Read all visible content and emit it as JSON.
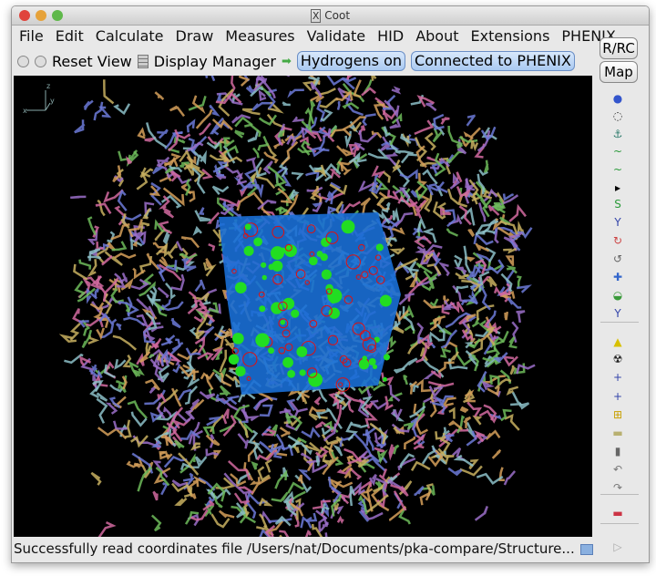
{
  "window": {
    "title": "Coot",
    "title_icon": "x11-icon"
  },
  "menu": [
    "File",
    "Edit",
    "Calculate",
    "Draw",
    "Measures",
    "Validate",
    "HID",
    "About",
    "Extensions",
    "PHENIX"
  ],
  "toolbar": {
    "reset_view": "Reset View",
    "display_manager": "Display Manager",
    "hydrogens": "Hydrogens on",
    "phenix": "Connected to PHENIX"
  },
  "side": {
    "rrc": "R/RC",
    "map": "Map",
    "icons": [
      "rotate-translate-icon",
      "rotate-zone-icon",
      "torsion-icon",
      "refine-zone-icon",
      "regularize-zone-icon",
      "expand-arrow-icon",
      "rigid-body-fit-icon",
      "flip-peptide-icon",
      "side-chain-rotamer-icon",
      "edit-chi-icon",
      "mutate-icon",
      "auto-fit-rotamer-icon",
      "backrub-icon",
      "add-alt-conf-icon",
      "radiation-icon",
      "add-terminal-residue-icon",
      "add-atom-icon",
      "place-atom-icon",
      "stamp-icon",
      "delete-icon",
      "undo-icon",
      "redo-icon",
      "ramachandran-icon",
      "play-icon"
    ]
  },
  "axes": {
    "x": "x",
    "y": "y",
    "z": "z"
  },
  "status": "Successfully read coordinates file /Users/nat/Documents/pka-compare/Structure...",
  "colors": {
    "map": "#1a6fd6",
    "stick": [
      "#c8b060",
      "#9b6fc9",
      "#d26aa0",
      "#6dbb5a",
      "#6c7ad8",
      "#d6a05a",
      "#8cc0c8"
    ]
  }
}
